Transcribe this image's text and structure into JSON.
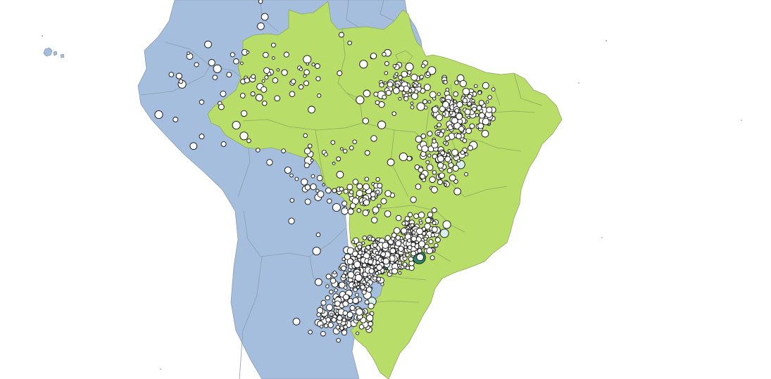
{
  "map": {
    "colors": {
      "ocean": "#ffffff",
      "south_america": "#a6bedd",
      "brazil": "#b9dd69",
      "marker_default": "#ffffff",
      "marker_light": "#d9f0ee",
      "marker_medium": "#a8dcd6",
      "marker_dark": "#2e8b6a"
    },
    "cities": [
      {
        "lat": -23.55,
        "lon": -46.63,
        "tier": 3
      },
      {
        "lat": -22.91,
        "lon": -43.2,
        "tier": 3
      },
      {
        "lat": -15.79,
        "lon": -47.88,
        "tier": 1
      },
      {
        "lat": -12.97,
        "lon": -38.5,
        "tier": 1
      },
      {
        "lat": -3.73,
        "lon": -38.52,
        "tier": 0
      },
      {
        "lat": -19.92,
        "lon": -43.94,
        "tier": 0
      },
      {
        "lat": -3.1,
        "lon": -60.02,
        "tier": 0
      },
      {
        "lat": -25.43,
        "lon": -49.27,
        "tier": 1
      },
      {
        "lat": -8.05,
        "lon": -34.88,
        "tier": 0
      },
      {
        "lat": -30.03,
        "lon": -51.23,
        "tier": 0
      },
      {
        "lat": -1.46,
        "lon": -48.5,
        "tier": 0
      },
      {
        "lat": -16.68,
        "lon": -49.25,
        "tier": 2
      },
      {
        "lat": -2.53,
        "lon": -44.3,
        "tier": 0
      },
      {
        "lat": -5.09,
        "lon": -42.8,
        "tier": 0
      },
      {
        "lat": -9.67,
        "lon": -35.74,
        "tier": 0
      },
      {
        "lat": -5.79,
        "lon": -35.21,
        "tier": 0
      },
      {
        "lat": -7.12,
        "lon": -34.86,
        "tier": 0
      },
      {
        "lat": -10.91,
        "lon": -37.07,
        "tier": 0
      },
      {
        "lat": -20.32,
        "lon": -40.34,
        "tier": 1
      },
      {
        "lat": -27.6,
        "lon": -48.55,
        "tier": 1
      },
      {
        "lat": -20.47,
        "lon": -54.62,
        "tier": 0
      },
      {
        "lat": -15.6,
        "lon": -56.1,
        "tier": 0
      },
      {
        "lat": -8.76,
        "lon": -63.9,
        "tier": 0
      },
      {
        "lat": -9.97,
        "lon": -67.81,
        "tier": 0
      },
      {
        "lat": 2.82,
        "lon": -60.67,
        "tier": 0
      },
      {
        "lat": 0.03,
        "lon": -51.07,
        "tier": 0
      },
      {
        "lat": -10.18,
        "lon": -48.33,
        "tier": 0
      },
      {
        "lat": -22.9,
        "lon": -47.06,
        "tier": 0
      },
      {
        "lat": -23.96,
        "lon": -46.33,
        "tier": 1
      },
      {
        "lat": -22.88,
        "lon": -43.1,
        "tier": 0
      },
      {
        "lat": -21.76,
        "lon": -43.35,
        "tier": 0
      },
      {
        "lat": -18.91,
        "lon": -48.27,
        "tier": 0
      },
      {
        "lat": -23.31,
        "lon": -51.16,
        "tier": 0
      },
      {
        "lat": -26.3,
        "lon": -48.85,
        "tier": 0
      },
      {
        "lat": -29.17,
        "lon": -51.18,
        "tier": 0
      },
      {
        "lat": -31.77,
        "lon": -52.34,
        "tier": 0
      },
      {
        "lat": -12.25,
        "lon": -38.97,
        "tier": 0
      },
      {
        "lat": -7.23,
        "lon": -35.88,
        "tier": 0
      },
      {
        "lat": -14.86,
        "lon": -40.84,
        "tier": 0
      },
      {
        "lat": -21.17,
        "lon": -47.81,
        "tier": 0
      },
      {
        "lat": -23.19,
        "lon": -45.88,
        "tier": 0
      },
      {
        "lat": -16.72,
        "lon": -43.86,
        "tier": 0
      },
      {
        "lat": -5.52,
        "lon": -47.48,
        "tier": 0
      },
      {
        "lat": -2.44,
        "lon": -54.71,
        "tier": 0
      },
      {
        "lat": -5.37,
        "lon": -49.12,
        "tier": 0
      },
      {
        "lat": -9.39,
        "lon": -40.5,
        "tier": 0
      },
      {
        "lat": -9.4,
        "lon": -38.21,
        "tier": 0
      },
      {
        "lat": -7.22,
        "lon": -39.32,
        "tier": 0
      },
      {
        "lat": -3.69,
        "lon": -40.35,
        "tier": 0
      },
      {
        "lat": -4.86,
        "lon": -43.36,
        "tier": 0
      },
      {
        "lat": -11.43,
        "lon": -61.45,
        "tier": 0
      },
      {
        "lat": -7.51,
        "lon": -63.02,
        "tier": 0
      },
      {
        "lat": -4.38,
        "lon": -70.03,
        "tier": 0
      },
      {
        "lat": -3.36,
        "lon": -64.72,
        "tier": 0
      },
      {
        "lat": -0.13,
        "lon": -67.09,
        "tier": 0
      },
      {
        "lat": -2.63,
        "lon": -56.74,
        "tier": 0
      },
      {
        "lat": -3.13,
        "lon": -58.44,
        "tier": 0
      },
      {
        "lat": -1.72,
        "lon": -55.87,
        "tier": 0
      },
      {
        "lat": -3.2,
        "lon": -52.21,
        "tier": 0
      },
      {
        "lat": -7.1,
        "lon": -55.38,
        "tier": 0
      },
      {
        "lat": -9.87,
        "lon": -56.08,
        "tier": 0
      },
      {
        "lat": -11.86,
        "lon": -55.51,
        "tier": 0
      },
      {
        "lat": -12.55,
        "lon": -55.72,
        "tier": 0
      },
      {
        "lat": -13.06,
        "lon": -55.91,
        "tier": 0
      },
      {
        "lat": -16.47,
        "lon": -54.64,
        "tier": 0
      },
      {
        "lat": -17.79,
        "lon": -50.92,
        "tier": 0
      },
      {
        "lat": -19.01,
        "lon": -57.65,
        "tier": 0
      },
      {
        "lat": -22.22,
        "lon": -54.81,
        "tier": 0
      },
      {
        "lat": -24.95,
        "lon": -53.46,
        "tier": 0
      },
      {
        "lat": -25.54,
        "lon": -54.59,
        "tier": 0
      },
      {
        "lat": -25.09,
        "lon": -50.16,
        "tier": 0
      },
      {
        "lat": -27.1,
        "lon": -52.62,
        "tier": 0
      },
      {
        "lat": -28.26,
        "lon": -52.41,
        "tier": 0
      },
      {
        "lat": -29.68,
        "lon": -53.81,
        "tier": 0
      },
      {
        "lat": -29.76,
        "lon": -57.09,
        "tier": 0
      },
      {
        "lat": -30.89,
        "lon": -55.53,
        "tier": 0
      },
      {
        "lat": -28.68,
        "lon": -49.37,
        "tier": 0
      },
      {
        "lat": -26.92,
        "lon": -49.07,
        "tier": 0
      },
      {
        "lat": -21.2,
        "lon": -50.43,
        "tier": 0
      },
      {
        "lat": -22.12,
        "lon": -51.39,
        "tier": 0
      },
      {
        "lat": -20.82,
        "lon": -49.38,
        "tier": 0
      },
      {
        "lat": -22.32,
        "lon": -49.07,
        "tier": 0
      },
      {
        "lat": -21.8,
        "lon": -46.56,
        "tier": 0
      },
      {
        "lat": -22.42,
        "lon": -45.45,
        "tier": 0
      },
      {
        "lat": -20.14,
        "lon": -44.89,
        "tier": 0
      },
      {
        "lat": -19.47,
        "lon": -44.25,
        "tier": 0
      },
      {
        "lat": -18.85,
        "lon": -41.95,
        "tier": 0
      },
      {
        "lat": -19.39,
        "lon": -40.07,
        "tier": 0
      },
      {
        "lat": -17.86,
        "lon": -41.5,
        "tier": 0
      },
      {
        "lat": -15.85,
        "lon": -38.88,
        "tier": 0
      },
      {
        "lat": -14.79,
        "lon": -39.04,
        "tier": 0
      },
      {
        "lat": -13.37,
        "lon": -39.07,
        "tier": 0
      },
      {
        "lat": -12.14,
        "lon": -44.99,
        "tier": 0
      },
      {
        "lat": -13.26,
        "lon": -43.42,
        "tier": 0
      },
      {
        "lat": -14.23,
        "lon": -42.78,
        "tier": 0
      },
      {
        "lat": -10.73,
        "lon": -40.12,
        "tier": 0
      },
      {
        "lat": -11.3,
        "lon": -41.86,
        "tier": 0
      },
      {
        "lat": -6.77,
        "lon": -43.02,
        "tier": 0
      },
      {
        "lat": -7.08,
        "lon": -41.47,
        "tier": 0
      },
      {
        "lat": -6.4,
        "lon": -39.3,
        "tier": 0
      },
      {
        "lat": -6.46,
        "lon": -37.1,
        "tier": 0
      },
      {
        "lat": -5.19,
        "lon": -37.34,
        "tier": 0
      },
      {
        "lat": -8.28,
        "lon": -35.97,
        "tier": 0
      },
      {
        "lat": -8.89,
        "lon": -36.49,
        "tier": 0
      },
      {
        "lat": -7.84,
        "lon": -35.26,
        "tier": 0
      },
      {
        "lat": -4.22,
        "lon": -38.97,
        "tier": 0
      },
      {
        "lat": -3.36,
        "lon": -42.24,
        "tier": 0
      },
      {
        "lat": -2.92,
        "lon": -41.77,
        "tier": 0
      },
      {
        "lat": -3.75,
        "lon": -43.35,
        "tier": 0
      },
      {
        "lat": -4.57,
        "lon": -44.61,
        "tier": 0
      },
      {
        "lat": -7.53,
        "lon": -46.04,
        "tier": 0
      },
      {
        "lat": -6.56,
        "lon": -47.45,
        "tier": 0
      },
      {
        "lat": -8.73,
        "lon": -47.44,
        "tier": 0
      },
      {
        "lat": -11.73,
        "lon": -49.07,
        "tier": 0
      },
      {
        "lat": -12.74,
        "lon": -46.41,
        "tier": 0
      },
      {
        "lat": -14.53,
        "lon": -49.15,
        "tier": 0
      },
      {
        "lat": -16.33,
        "lon": -48.95,
        "tier": 0
      },
      {
        "lat": -17.56,
        "lon": -52.55,
        "tier": 0
      },
      {
        "lat": -15.9,
        "lon": -52.25,
        "tier": 0
      },
      {
        "lat": -14.05,
        "lon": -52.16,
        "tier": 0
      },
      {
        "lat": -10.54,
        "lon": -50.5,
        "tier": 0
      },
      {
        "lat": -8.31,
        "lon": -49.26,
        "tier": 0
      },
      {
        "lat": -6.07,
        "lon": -49.9,
        "tier": 0
      },
      {
        "lat": -4.27,
        "lon": -55.98,
        "tier": 0
      },
      {
        "lat": -1.03,
        "lon": -46.77,
        "tier": 0
      },
      {
        "lat": -1.19,
        "lon": -47.18,
        "tier": 0
      },
      {
        "lat": -1.36,
        "lon": -48.37,
        "tier": 0
      },
      {
        "lat": -2.24,
        "lon": -49.5,
        "tier": 0
      },
      {
        "lat": 0.9,
        "lon": -52.0,
        "tier": 0
      },
      {
        "lat": 1.82,
        "lon": -61.12,
        "tier": 0
      },
      {
        "lat": 4.46,
        "lon": -61.15,
        "tier": 0
      },
      {
        "lat": -0.97,
        "lon": -62.93,
        "tier": 0
      },
      {
        "lat": -2.73,
        "lon": -66.04,
        "tier": 0
      },
      {
        "lat": -4.09,
        "lon": -63.14,
        "tier": 0
      },
      {
        "lat": -5.82,
        "lon": -61.3,
        "tier": 0
      },
      {
        "lat": -3.28,
        "lon": -60.19,
        "tier": 0
      },
      {
        "lat": -3.83,
        "lon": -62.06,
        "tier": 0
      },
      {
        "lat": -7.63,
        "lon": -72.67,
        "tier": 0
      },
      {
        "lat": -8.16,
        "lon": -70.77,
        "tier": 0
      },
      {
        "lat": -10.99,
        "lon": -68.74,
        "tier": 0
      },
      {
        "lat": -10.43,
        "lon": -62.47,
        "tier": 0
      },
      {
        "lat": -12.74,
        "lon": -60.13,
        "tier": 0
      },
      {
        "lat": -9.91,
        "lon": -63.03,
        "tier": 0
      },
      {
        "lat": -10.78,
        "lon": -65.33,
        "tier": 0
      }
    ]
  }
}
